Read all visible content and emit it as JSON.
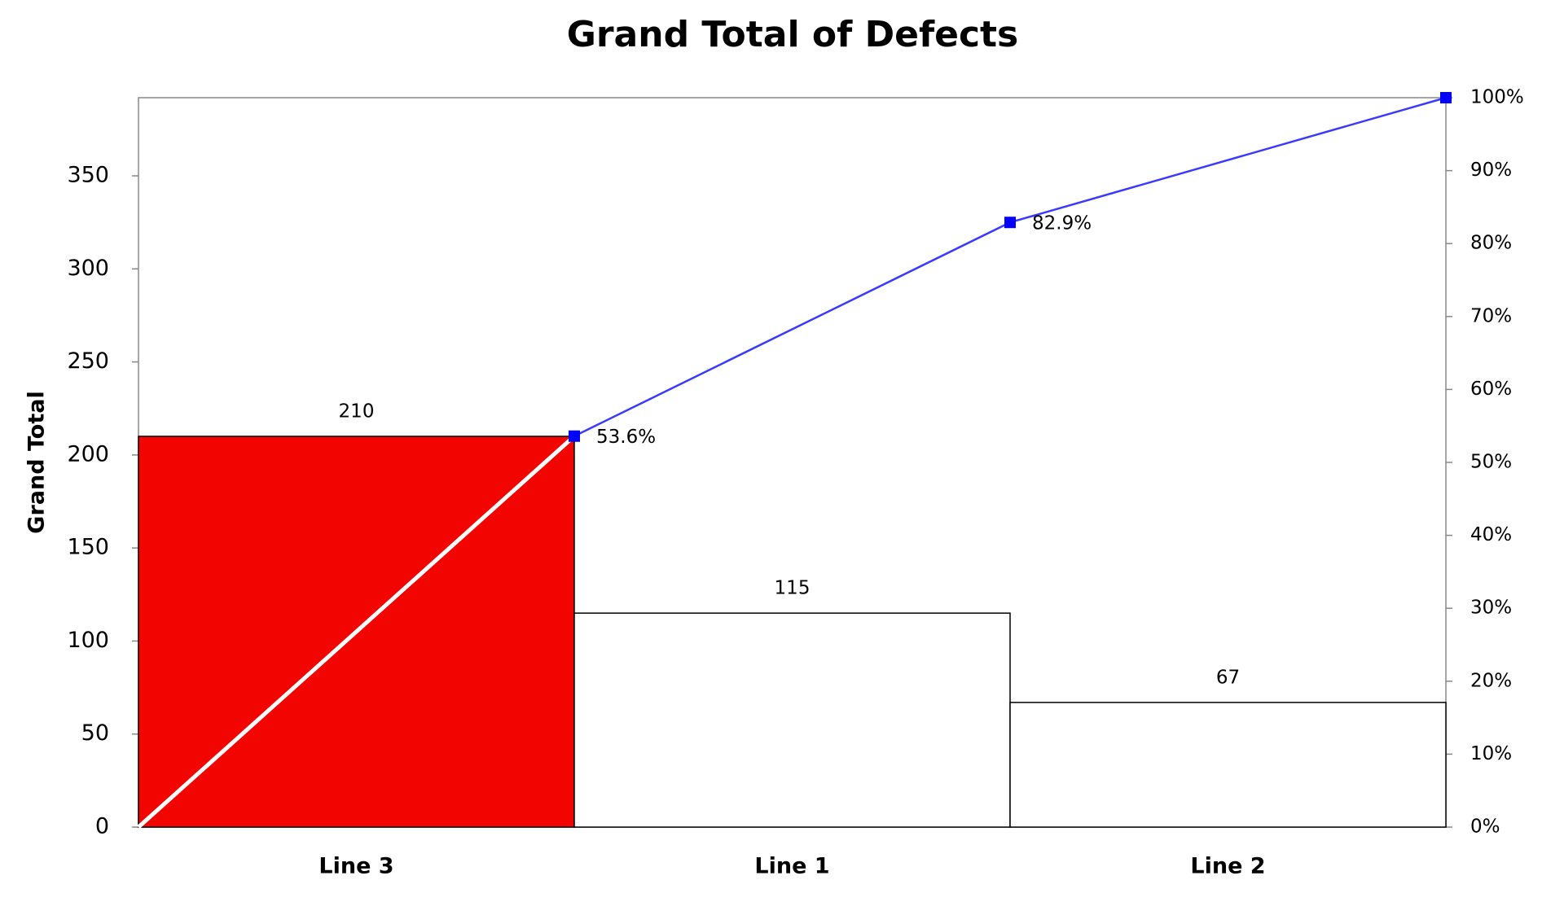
{
  "chart_data": {
    "type": "pareto",
    "title": "Grand Total of Defects",
    "y_label": "Grand Total",
    "categories": [
      "Line 3",
      "Line 1",
      "Line 2"
    ],
    "values": [
      210,
      115,
      67
    ],
    "colors": [
      "#f20500",
      "#ffffff",
      "#ffffff"
    ],
    "cumulative": {
      "values": [
        53.6,
        82.9,
        100
      ],
      "value_labels": [
        "53.6%",
        "82.9%",
        null
      ],
      "color": "#3a3aff",
      "axis": "y2"
    },
    "ylim": [
      0,
      392
    ],
    "yticks": [
      0,
      50,
      100,
      150,
      200,
      250,
      300,
      350
    ],
    "y2lim": [
      0,
      100
    ],
    "y2ticks": [
      {
        "value": 0,
        "label": "0%"
      },
      {
        "value": 10,
        "label": "10%"
      },
      {
        "value": 20,
        "label": "20%"
      },
      {
        "value": 30,
        "label": "30%"
      },
      {
        "value": 40,
        "label": "40%"
      },
      {
        "value": 50,
        "label": "50%"
      },
      {
        "value": 60,
        "label": "60%"
      },
      {
        "value": 70,
        "label": "70%"
      },
      {
        "value": 80,
        "label": "80%"
      },
      {
        "value": 90,
        "label": "90%"
      },
      {
        "value": 100,
        "label": "100%"
      }
    ],
    "grid": false
  }
}
